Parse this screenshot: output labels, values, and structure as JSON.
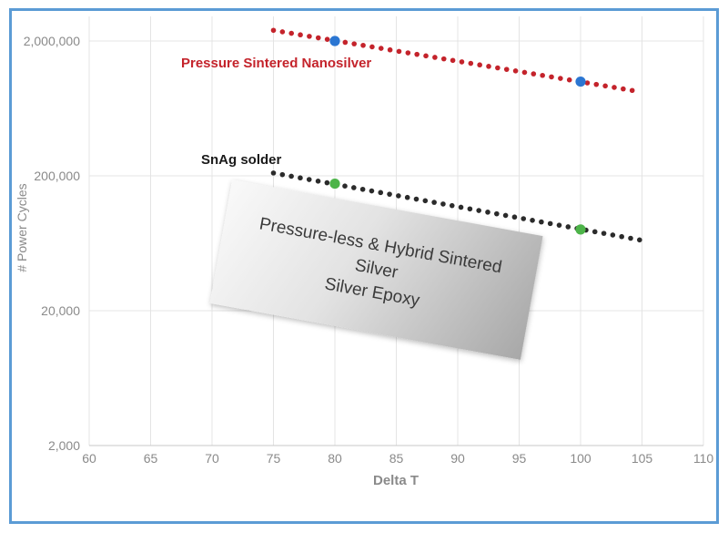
{
  "figure": {
    "border_color": "#5b9bd5",
    "background": "#ffffff",
    "grid_color": "#e4e4e4",
    "axis_line_color": "#c9c9c9",
    "tick_label_color": "#8a8a8a"
  },
  "chart_data": {
    "type": "scatter",
    "title": "",
    "xlabel": "Delta T",
    "ylabel": "# Power Cycles",
    "grid": true,
    "x_axis": {
      "min": 60,
      "max": 110,
      "ticks": [
        60,
        65,
        70,
        75,
        80,
        85,
        90,
        95,
        100,
        105,
        110
      ]
    },
    "y_axis": {
      "scale": "log",
      "min": 2000,
      "max": 3000000,
      "ticks": [
        {
          "value": 2000000,
          "label": "2,000,000"
        },
        {
          "value": 200000,
          "label": "200,000"
        },
        {
          "value": 20000,
          "label": "20,000"
        },
        {
          "value": 2000,
          "label": "2,000"
        }
      ]
    },
    "series": [
      {
        "name": "Pressure Sintered Nanosilver",
        "style": "dotted-trend",
        "color": "#c4232b",
        "trend": {
          "x": [
            75,
            104.2
          ],
          "y": [
            2400000,
            860000
          ]
        },
        "markers": {
          "color": "#2b76d2",
          "points": [
            [
              80,
              2000000
            ],
            [
              100,
              1000000
            ]
          ]
        }
      },
      {
        "name": "SnAg solder",
        "style": "dotted-trend",
        "color": "#2b2b2b",
        "trend": {
          "x": [
            75,
            104.8
          ],
          "y": [
            210000,
            67000
          ]
        },
        "markers": {
          "color": "#4db449",
          "points": [
            [
              80,
              175000
            ],
            [
              100,
              80000
            ]
          ]
        }
      }
    ],
    "annotations": [
      {
        "type": "rotated-box",
        "rotation_deg": 10.3,
        "lines": [
          "Pressure-less & Hybrid Sintered",
          "Silver",
          "Silver Epoxy"
        ]
      }
    ]
  }
}
